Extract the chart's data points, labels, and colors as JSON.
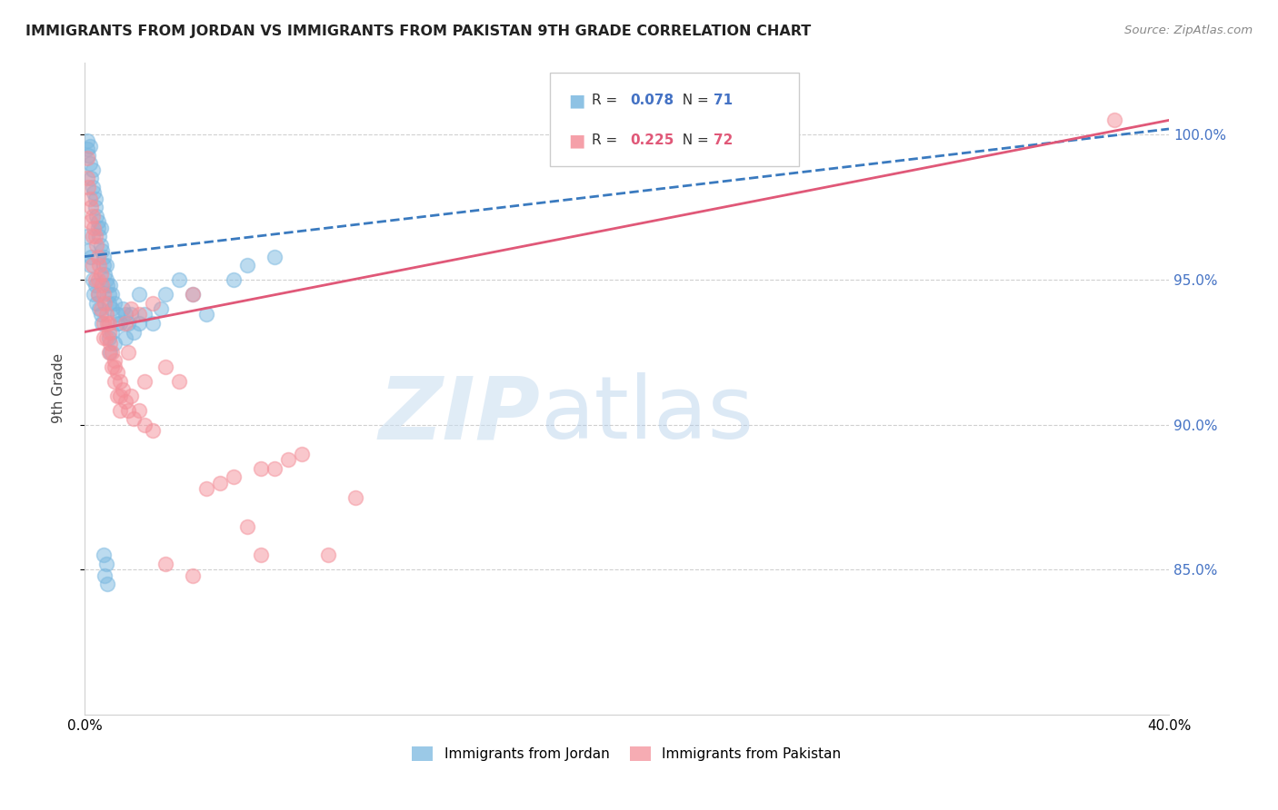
{
  "title": "IMMIGRANTS FROM JORDAN VS IMMIGRANTS FROM PAKISTAN 9TH GRADE CORRELATION CHART",
  "source": "Source: ZipAtlas.com",
  "ylabel": "9th Grade",
  "xlim": [
    0.0,
    40.0
  ],
  "ylim": [
    80.0,
    102.5
  ],
  "yticks": [
    85.0,
    90.0,
    95.0,
    100.0
  ],
  "ytick_labels": [
    "85.0%",
    "90.0%",
    "95.0%",
    "100.0%"
  ],
  "xticks": [
    0.0,
    5.0,
    10.0,
    15.0,
    20.0,
    25.0,
    30.0,
    35.0,
    40.0
  ],
  "xtick_labels": [
    "0.0%",
    "",
    "",
    "",
    "",
    "",
    "",
    "",
    "40.0%"
  ],
  "jordan_color": "#7ab8e0",
  "pakistan_color": "#f4909a",
  "jordan_line_color": "#3a7abf",
  "pakistan_line_color": "#e05878",
  "jordan_R": 0.078,
  "jordan_N": 71,
  "pakistan_R": 0.225,
  "pakistan_N": 72,
  "legend_jordan": "Immigrants from Jordan",
  "legend_pakistan": "Immigrants from Pakistan",
  "jordan_scatter_x": [
    0.1,
    0.1,
    0.15,
    0.2,
    0.2,
    0.25,
    0.3,
    0.3,
    0.35,
    0.4,
    0.4,
    0.45,
    0.5,
    0.5,
    0.55,
    0.6,
    0.6,
    0.65,
    0.7,
    0.7,
    0.75,
    0.8,
    0.8,
    0.85,
    0.9,
    0.9,
    0.95,
    1.0,
    1.0,
    1.1,
    1.2,
    1.3,
    1.4,
    1.5,
    1.6,
    1.7,
    1.8,
    2.0,
    2.2,
    2.5,
    2.8,
    3.0,
    3.5,
    4.0,
    4.5,
    5.5,
    6.0,
    7.0,
    0.1,
    0.15,
    0.2,
    0.25,
    0.3,
    0.35,
    0.4,
    0.45,
    0.5,
    0.55,
    0.6,
    0.65,
    0.7,
    0.75,
    0.8,
    0.85,
    0.9,
    0.95,
    1.0,
    1.1,
    1.2,
    1.5,
    2.0
  ],
  "jordan_scatter_y": [
    99.8,
    99.5,
    99.3,
    99.6,
    99.0,
    98.5,
    98.8,
    98.2,
    98.0,
    97.8,
    97.5,
    97.2,
    97.0,
    96.8,
    96.5,
    96.8,
    96.2,
    96.0,
    95.8,
    95.5,
    95.2,
    95.5,
    95.0,
    94.8,
    94.5,
    94.2,
    94.8,
    94.5,
    94.0,
    94.2,
    93.8,
    93.5,
    94.0,
    93.8,
    93.5,
    93.8,
    93.2,
    94.5,
    93.8,
    93.5,
    94.0,
    94.5,
    95.0,
    94.5,
    93.8,
    95.0,
    95.5,
    95.8,
    96.5,
    96.0,
    95.5,
    95.8,
    95.0,
    94.5,
    94.8,
    94.2,
    94.5,
    94.0,
    93.8,
    93.5,
    85.5,
    84.8,
    85.2,
    84.5,
    93.0,
    92.5,
    93.2,
    92.8,
    93.5,
    93.0,
    93.5
  ],
  "pakistan_scatter_x": [
    0.1,
    0.15,
    0.2,
    0.25,
    0.3,
    0.35,
    0.4,
    0.45,
    0.5,
    0.55,
    0.6,
    0.65,
    0.7,
    0.75,
    0.8,
    0.85,
    0.9,
    0.95,
    1.0,
    1.1,
    1.2,
    1.3,
    1.4,
    1.5,
    1.6,
    1.7,
    1.8,
    2.0,
    2.2,
    2.5,
    0.1,
    0.2,
    0.3,
    0.4,
    0.5,
    0.6,
    0.7,
    0.8,
    0.9,
    1.0,
    1.1,
    1.2,
    1.3,
    1.5,
    1.7,
    2.0,
    2.5,
    3.0,
    3.5,
    4.0,
    5.0,
    6.0,
    7.0,
    8.0,
    10.0,
    4.5,
    5.5,
    6.5,
    7.5,
    9.0,
    0.3,
    0.5,
    0.7,
    0.9,
    1.1,
    1.3,
    1.6,
    2.2,
    3.0,
    4.0,
    6.5,
    38.0
  ],
  "pakistan_scatter_y": [
    98.5,
    98.2,
    97.8,
    97.5,
    97.2,
    96.8,
    96.5,
    96.2,
    95.8,
    95.5,
    95.2,
    94.8,
    94.5,
    94.2,
    93.8,
    93.5,
    93.2,
    92.8,
    92.5,
    92.2,
    91.8,
    91.5,
    91.2,
    90.8,
    90.5,
    91.0,
    90.2,
    90.5,
    90.0,
    89.8,
    99.2,
    97.0,
    96.5,
    95.0,
    94.5,
    94.0,
    93.5,
    93.0,
    92.5,
    92.0,
    91.5,
    91.0,
    90.5,
    93.5,
    94.0,
    93.8,
    94.2,
    92.0,
    91.5,
    94.5,
    88.0,
    86.5,
    88.5,
    89.0,
    87.5,
    87.8,
    88.2,
    88.5,
    88.8,
    85.5,
    95.5,
    95.0,
    93.0,
    93.5,
    92.0,
    91.0,
    92.5,
    91.5,
    85.2,
    84.8,
    85.5,
    100.5
  ]
}
